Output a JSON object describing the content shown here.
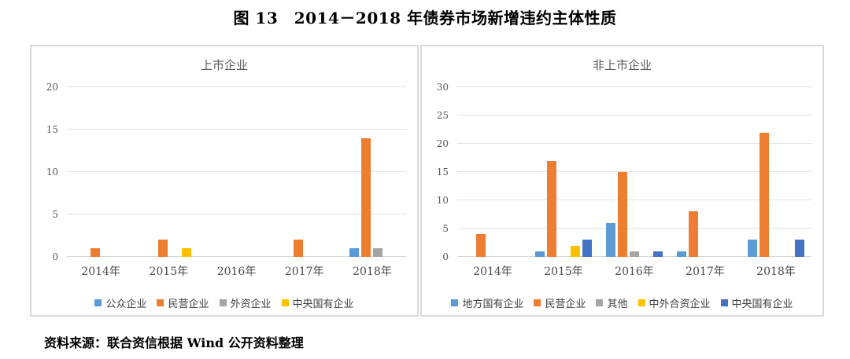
{
  "page": {
    "title": "图 13　2014－2018 年债券市场新增违约主体性质",
    "source": "资料来源：联合资信根据 Wind 公开资料整理"
  },
  "colors": {
    "blue": "#5B9BD5",
    "orange": "#ED7D31",
    "gray": "#A5A5A5",
    "yellow": "#FFC000",
    "dark_blue": "#4472C4",
    "gridline": "#E2E2E2",
    "axis_text": "#595959",
    "panel_border": "#D9D9D9"
  },
  "chart_data": [
    {
      "type": "bar",
      "title": "上市企业",
      "categories": [
        "2014年",
        "2015年",
        "2016年",
        "2017年",
        "2018年"
      ],
      "series": [
        {
          "name": "公众企业",
          "color": "#5B9BD5",
          "values": [
            0,
            0,
            0,
            0,
            1
          ]
        },
        {
          "name": "民营企业",
          "color": "#ED7D31",
          "values": [
            1,
            2,
            0,
            2,
            14
          ]
        },
        {
          "name": "外资企业",
          "color": "#A5A5A5",
          "values": [
            0,
            0,
            0,
            0,
            1
          ]
        },
        {
          "name": "中央国有企业",
          "color": "#FFC000",
          "values": [
            0,
            1,
            0,
            0,
            0
          ]
        }
      ],
      "ylim": [
        0,
        20
      ],
      "ytick": 5,
      "grid": true,
      "legend_position": "bottom"
    },
    {
      "type": "bar",
      "title": "非上市企业",
      "categories": [
        "2014年",
        "2015年",
        "2016年",
        "2017年",
        "2018年"
      ],
      "series": [
        {
          "name": "地方国有企业",
          "color": "#5B9BD5",
          "values": [
            0,
            1,
            6,
            1,
            3
          ]
        },
        {
          "name": "民营企业",
          "color": "#ED7D31",
          "values": [
            4,
            17,
            15,
            8,
            22
          ]
        },
        {
          "name": "其他",
          "color": "#A5A5A5",
          "values": [
            0,
            0,
            1,
            0,
            0
          ]
        },
        {
          "name": "中外合资企业",
          "color": "#FFC000",
          "values": [
            0,
            2,
            0,
            0,
            0
          ]
        },
        {
          "name": "中央国有企业",
          "color": "#4472C4",
          "values": [
            0,
            3,
            1,
            0,
            3
          ]
        }
      ],
      "ylim": [
        0,
        30
      ],
      "ytick": 5,
      "grid": true,
      "legend_position": "bottom"
    }
  ]
}
